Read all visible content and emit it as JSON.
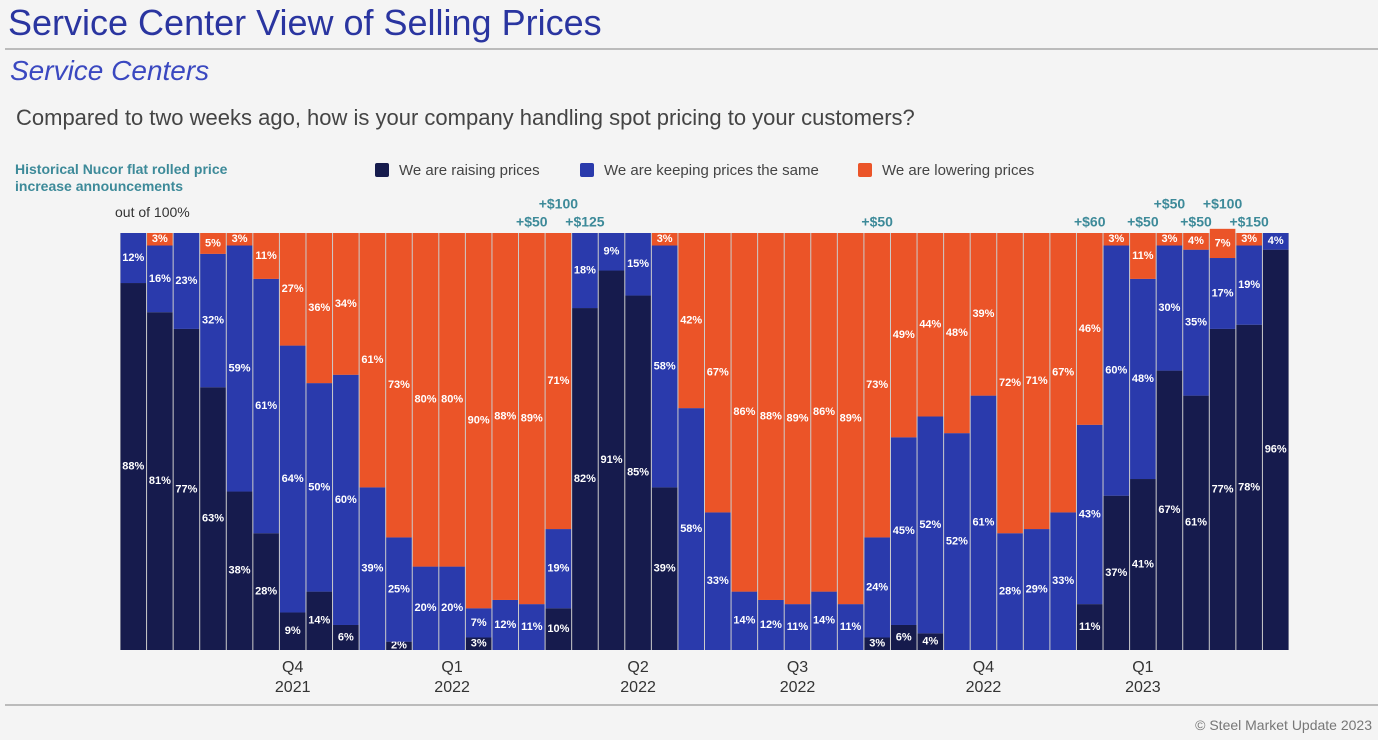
{
  "chart_data": {
    "type": "stacked_bar_100",
    "title": "Service Center View of Selling Prices",
    "subtitle": "Service Centers",
    "question": "Compared to two weeks ago, how is your company handling spot pricing to your customers?",
    "annotation_title": "Historical Nucor flat rolled price increase announcements",
    "y_note": "out of 100%",
    "footer": "© Steel Market Update 2023",
    "ylim": [
      0,
      100
    ],
    "categories": [
      null,
      null,
      null,
      null,
      null,
      null,
      "Q4 2021",
      null,
      null,
      null,
      null,
      null,
      "Q1 2022",
      null,
      null,
      null,
      null,
      null,
      null,
      "Q2 2022",
      null,
      null,
      null,
      null,
      null,
      "Q3 2022",
      null,
      null,
      null,
      null,
      null,
      null,
      "Q4 2022",
      null,
      null,
      null,
      null,
      null,
      "Q1 2023",
      null,
      null,
      null,
      null,
      null
    ],
    "series": [
      {
        "name": "We are raising prices",
        "color": "#161b4d",
        "values": [
          88,
          81,
          77,
          63,
          38,
          28,
          9,
          14,
          6,
          0,
          2,
          0,
          0,
          3,
          0,
          0,
          10,
          82,
          91,
          85,
          39,
          0,
          0,
          0,
          0,
          0,
          0,
          0,
          3,
          6,
          4,
          0,
          0,
          0,
          0,
          0,
          11,
          37,
          41,
          67,
          61,
          77,
          78,
          96
        ],
        "value_labels": [
          "88%",
          "81%",
          "77%",
          "63%",
          "38%",
          "28%",
          "9%",
          "14%",
          "6%",
          null,
          "2%",
          null,
          null,
          "3%",
          null,
          null,
          "10%",
          "82%",
          "91%",
          "85%",
          "39%",
          null,
          null,
          null,
          null,
          null,
          null,
          null,
          "3%",
          "6%",
          "4%",
          null,
          null,
          null,
          null,
          null,
          "11%",
          "37%",
          "41%",
          "67%",
          "61%",
          "77%",
          "78%",
          "96%"
        ]
      },
      {
        "name": "We are keeping prices the same",
        "color": "#2a3aac",
        "values": [
          12,
          16,
          23,
          32,
          59,
          61,
          64,
          50,
          60,
          39,
          25,
          20,
          20,
          7,
          12,
          11,
          19,
          18,
          9,
          15,
          58,
          58,
          33,
          14,
          12,
          11,
          14,
          11,
          24,
          45,
          52,
          52,
          61,
          28,
          29,
          33,
          43,
          60,
          48,
          30,
          35,
          17,
          19,
          4
        ],
        "value_labels": [
          "12%",
          "16%",
          "23%",
          "32%",
          "59%",
          "61%",
          "64%",
          "50%",
          "60%",
          "39%",
          "25%",
          "20%",
          "20%",
          "7%",
          "12%",
          "11%",
          "19%",
          "18%",
          "9%",
          "15%",
          "58%",
          "58%",
          "33%",
          "14%",
          "12%",
          "11%",
          "14%",
          "11%",
          "24%",
          "45%",
          "52%",
          "52%",
          "61%",
          "28%",
          "29%",
          "33%",
          "43%",
          "60%",
          "48%",
          "30%",
          "35%",
          "17%",
          "19%",
          "4%"
        ]
      },
      {
        "name": "We are lowering prices",
        "color": "#eb5428",
        "values": [
          0,
          3,
          0,
          5,
          3,
          11,
          27,
          36,
          34,
          61,
          73,
          80,
          80,
          90,
          88,
          89,
          71,
          0,
          0,
          0,
          3,
          42,
          67,
          86,
          88,
          89,
          86,
          89,
          73,
          49,
          44,
          48,
          39,
          72,
          71,
          67,
          46,
          3,
          11,
          3,
          4,
          7,
          3,
          0
        ],
        "value_labels": [
          null,
          "3%",
          null,
          "5%",
          "3%",
          "11%",
          "27%",
          "36%",
          "34%",
          "61%",
          "73%",
          "80%",
          "80%",
          "90%",
          "88%",
          "89%",
          "71%",
          null,
          null,
          null,
          "3%",
          "42%",
          "67%",
          "86%",
          "88%",
          "89%",
          "86%",
          "89%",
          "73%",
          "49%",
          "44%",
          "48%",
          "39%",
          "72%",
          "71%",
          "67%",
          "46%",
          "3%",
          "11%",
          "3%",
          "4%",
          "7%",
          "3%",
          null
        ]
      }
    ],
    "annotations": [
      {
        "text": "+$50",
        "category": 15
      },
      {
        "text": "+$100",
        "category": 16
      },
      {
        "text": "+$125",
        "category": 17
      },
      {
        "text": "+$50",
        "category": 28
      },
      {
        "text": "+$60",
        "category": 36
      },
      {
        "text": "+$50",
        "category": 38
      },
      {
        "text": "+$50",
        "category": 39
      },
      {
        "text": "+$50",
        "category": 40
      },
      {
        "text": "+$100",
        "category": 41
      },
      {
        "text": "+$150",
        "category": 42
      }
    ]
  }
}
